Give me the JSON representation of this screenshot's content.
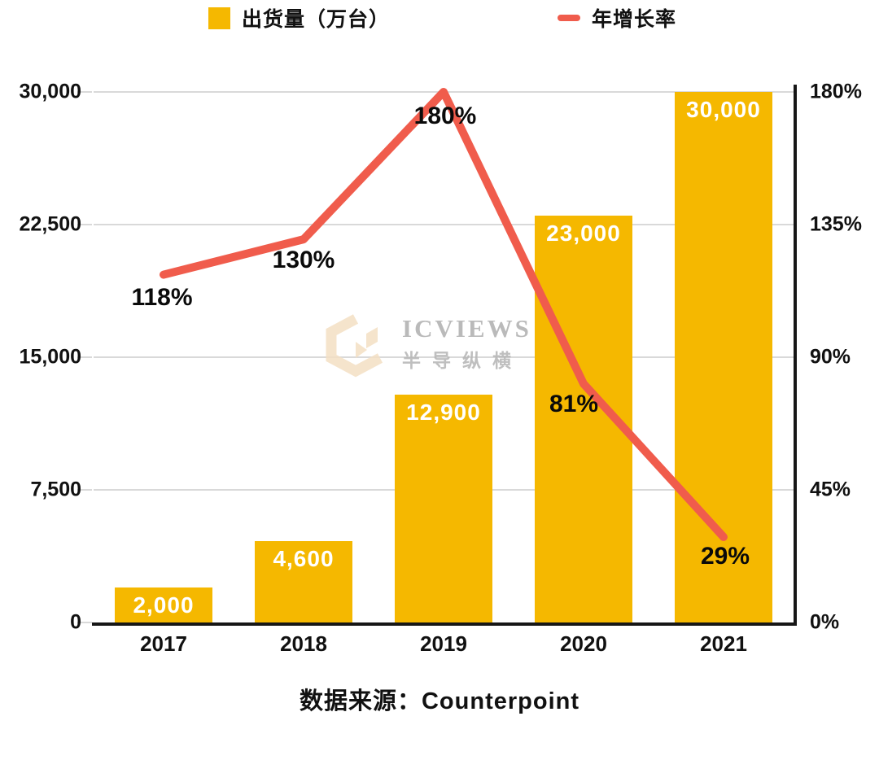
{
  "legend": {
    "bars_label": "出货量（万台）",
    "line_label": "年增长率"
  },
  "chart_data": {
    "type": "bar+line combo",
    "categories": [
      "2017",
      "2018",
      "2019",
      "2020",
      "2021"
    ],
    "series": [
      {
        "name": "出货量（万台）",
        "type": "bar",
        "axis": "left",
        "values": [
          2000,
          4600,
          12900,
          23000,
          30000
        ],
        "value_labels": [
          "2,000",
          "4,600",
          "12,900",
          "23,000",
          "30,000"
        ]
      },
      {
        "name": "年增长率",
        "type": "line",
        "axis": "right",
        "values": [
          118,
          130,
          180,
          81,
          29
        ],
        "value_labels": [
          "118%",
          "130%",
          "180%",
          "81%",
          "29%"
        ]
      }
    ],
    "left_axis": {
      "min": 0,
      "max": 30000,
      "tick_labels": [
        "0",
        "7,500",
        "15,000",
        "22,500",
        "30,000"
      ]
    },
    "right_axis": {
      "min": 0,
      "max": 180,
      "tick_labels": [
        "0%",
        "45%",
        "90%",
        "135%",
        "180%"
      ]
    },
    "grid": true,
    "legend_position": "top",
    "source": "数据来源：Counterpoint"
  },
  "watermark": {
    "brand": "ICVIEWS",
    "subtitle": "半导纵横"
  },
  "source_text": "数据来源：Counterpoint",
  "colors": {
    "bar": "#F5B800",
    "line": "#F05C4C",
    "grid": "#D9D9D9",
    "axis": "#161616",
    "bar_value_text": "#FFFFFF",
    "line_value_text": "#0A0A0A",
    "watermark_text": "#AEAEAE",
    "watermark_logo": "#F4E0C4"
  }
}
